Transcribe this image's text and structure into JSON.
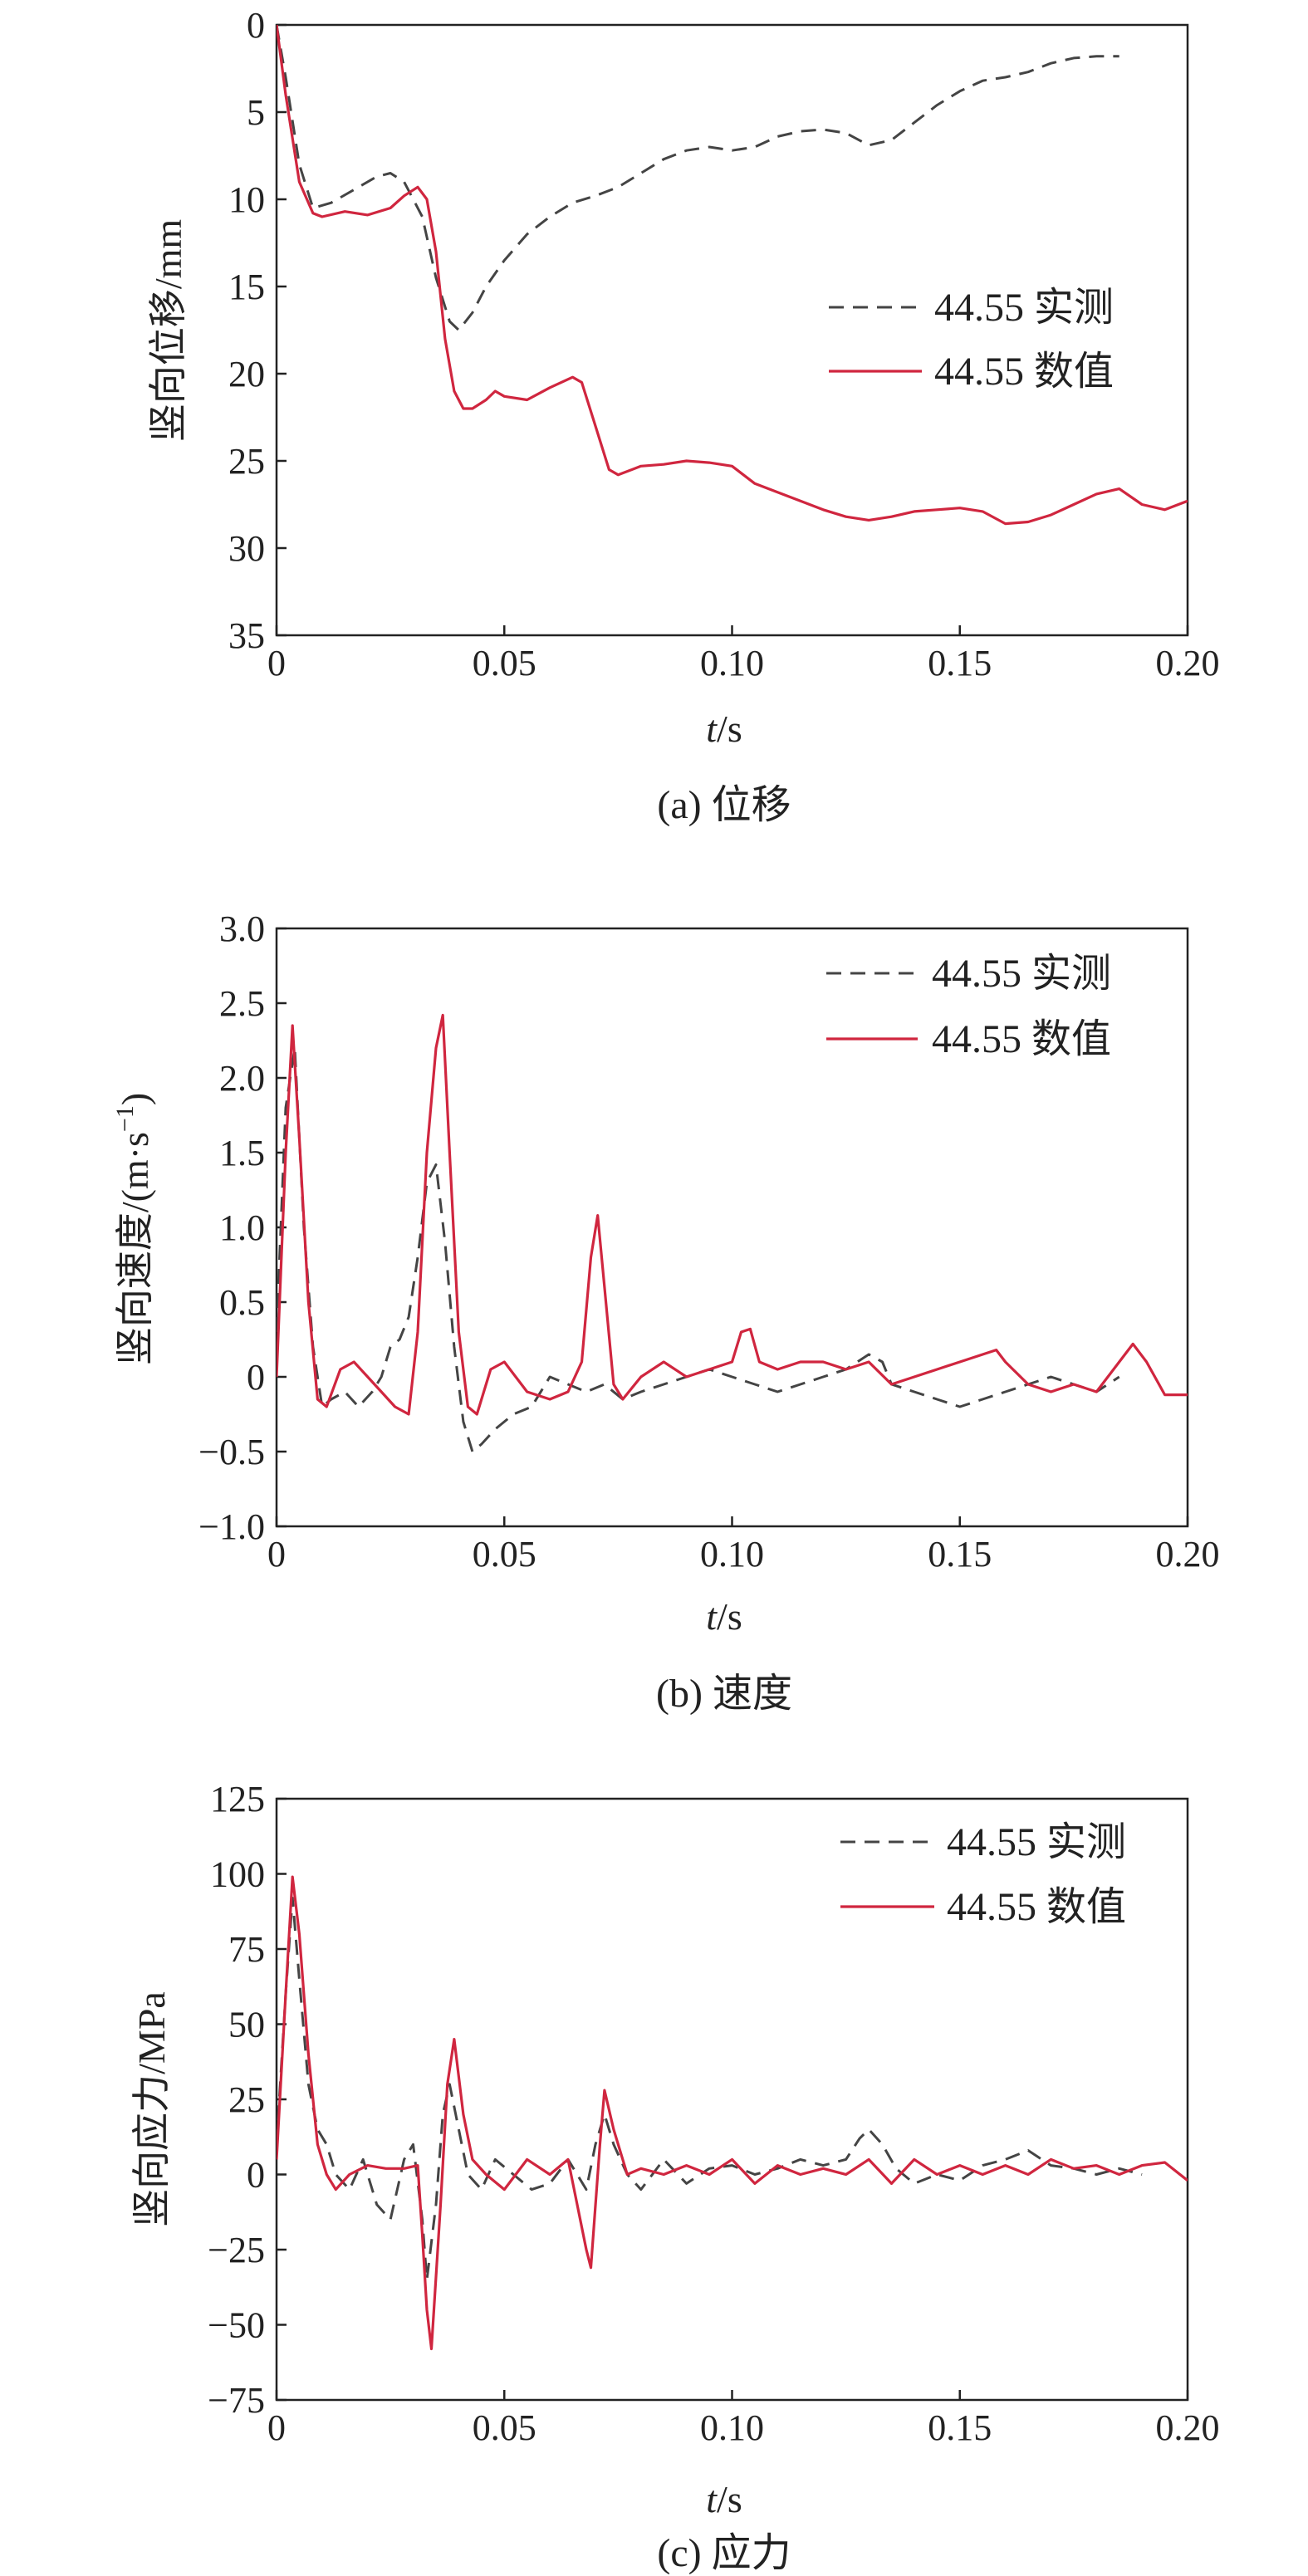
{
  "colors": {
    "measured": "#444444",
    "numerical": "#d0263f",
    "axis": "#222222"
  },
  "chart_data": [
    {
      "type": "line",
      "ylabel": "竖向位移/mm",
      "xlabel_italic": "t",
      "xlabel_unit": "/s",
      "caption": "(a) 位移",
      "y_inverted": true,
      "xlim": [
        0,
        0.2
      ],
      "ylim": [
        0,
        35
      ],
      "xticks": [
        0,
        0.05,
        0.1,
        0.15,
        0.2
      ],
      "xtick_labels": [
        "0",
        "0.05",
        "0.10",
        "0.15",
        "0.20"
      ],
      "yticks": [
        0,
        5,
        10,
        15,
        20,
        25,
        30,
        35
      ],
      "ytick_labels": [
        "0",
        "5",
        "10",
        "15",
        "20",
        "25",
        "30",
        "35"
      ],
      "legend": "right-middle",
      "series": [
        {
          "name": "44.55 实测",
          "style": "dashed",
          "x": [
            0,
            0.002,
            0.005,
            0.008,
            0.012,
            0.018,
            0.022,
            0.025,
            0.028,
            0.032,
            0.035,
            0.038,
            0.04,
            0.043,
            0.046,
            0.05,
            0.055,
            0.06,
            0.065,
            0.07,
            0.075,
            0.08,
            0.085,
            0.09,
            0.095,
            0.1,
            0.105,
            0.11,
            0.115,
            0.12,
            0.125,
            0.13,
            0.135,
            0.14,
            0.145,
            0.15,
            0.155,
            0.16,
            0.165,
            0.17,
            0.175,
            0.18,
            0.185
          ],
          "y": [
            0,
            3,
            8,
            10.5,
            10.2,
            9.3,
            8.7,
            8.5,
            9.0,
            11,
            14.5,
            17,
            17.5,
            16.5,
            15,
            13.5,
            12,
            11,
            10.2,
            9.8,
            9.3,
            8.5,
            7.7,
            7.2,
            7.0,
            7.2,
            7.0,
            6.4,
            6.1,
            6.0,
            6.2,
            6.9,
            6.6,
            5.6,
            4.6,
            3.8,
            3.2,
            3.0,
            2.7,
            2.2,
            1.9,
            1.8,
            1.8
          ]
        },
        {
          "name": "44.55 数值",
          "style": "solid",
          "x": [
            0,
            0.002,
            0.005,
            0.008,
            0.01,
            0.015,
            0.02,
            0.025,
            0.028,
            0.031,
            0.033,
            0.035,
            0.037,
            0.039,
            0.041,
            0.043,
            0.046,
            0.048,
            0.05,
            0.055,
            0.06,
            0.065,
            0.067,
            0.07,
            0.073,
            0.075,
            0.08,
            0.085,
            0.09,
            0.095,
            0.1,
            0.105,
            0.11,
            0.115,
            0.12,
            0.125,
            0.13,
            0.135,
            0.14,
            0.145,
            0.15,
            0.155,
            0.16,
            0.165,
            0.17,
            0.175,
            0.18,
            0.185,
            0.19,
            0.195,
            0.2
          ],
          "y": [
            0,
            4,
            9,
            10.8,
            11,
            10.7,
            10.9,
            10.5,
            9.8,
            9.3,
            10,
            13,
            18,
            21,
            22,
            22,
            21.5,
            21,
            21.3,
            21.5,
            20.8,
            20.2,
            20.5,
            23,
            25.5,
            25.8,
            25.3,
            25.2,
            25,
            25.1,
            25.3,
            26.3,
            26.8,
            27.3,
            27.8,
            28.2,
            28.4,
            28.2,
            27.9,
            27.8,
            27.7,
            27.9,
            28.6,
            28.5,
            28.1,
            27.5,
            26.9,
            26.6,
            27.5,
            27.8,
            27.3
          ]
        }
      ]
    },
    {
      "type": "line",
      "ylabel": "竖向速度/(m·s",
      "ylabel_sup": "−1",
      "ylabel_close": ")",
      "xlabel_italic": "t",
      "xlabel_unit": "/s",
      "caption": "(b) 速度",
      "xlim": [
        0,
        0.2
      ],
      "ylim": [
        -1.0,
        3.0
      ],
      "xticks": [
        0,
        0.05,
        0.1,
        0.15,
        0.2
      ],
      "xtick_labels": [
        "0",
        "0.05",
        "0.10",
        "0.15",
        "0.20"
      ],
      "yticks": [
        -1.0,
        -0.5,
        0,
        0.5,
        1.0,
        1.5,
        2.0,
        2.5,
        3.0
      ],
      "ytick_labels": [
        "−1.0",
        "−0.5",
        "0",
        "0.5",
        "1.0",
        "1.5",
        "2.0",
        "2.5",
        "3.0"
      ],
      "legend": "top-right",
      "series": [
        {
          "name": "44.55 实测",
          "style": "dashed",
          "x": [
            0,
            0.002,
            0.004,
            0.006,
            0.008,
            0.01,
            0.012,
            0.015,
            0.018,
            0.021,
            0.023,
            0.025,
            0.027,
            0.029,
            0.031,
            0.033,
            0.035,
            0.037,
            0.039,
            0.041,
            0.043,
            0.045,
            0.048,
            0.052,
            0.056,
            0.06,
            0.064,
            0.068,
            0.072,
            0.076,
            0.08,
            0.085,
            0.09,
            0.095,
            0.1,
            0.105,
            0.11,
            0.115,
            0.12,
            0.125,
            0.13,
            0.133,
            0.135,
            0.14,
            0.145,
            0.15,
            0.155,
            0.16,
            0.165,
            0.17,
            0.175,
            0.18,
            0.185
          ],
          "y": [
            0.3,
            1.8,
            2.2,
            1.0,
            0.2,
            -0.2,
            -0.15,
            -0.1,
            -0.2,
            -0.1,
            0,
            0.2,
            0.25,
            0.4,
            0.8,
            1.3,
            1.42,
            0.9,
            0.2,
            -0.3,
            -0.5,
            -0.45,
            -0.35,
            -0.25,
            -0.2,
            0,
            -0.05,
            -0.1,
            -0.05,
            -0.15,
            -0.1,
            -0.05,
            0,
            0.05,
            0,
            -0.05,
            -0.1,
            -0.05,
            0,
            0.05,
            0.15,
            0.1,
            -0.05,
            -0.1,
            -0.15,
            -0.2,
            -0.15,
            -0.1,
            -0.05,
            0,
            -0.05,
            -0.1,
            0
          ]
        },
        {
          "name": "44.55 数值",
          "style": "solid",
          "x": [
            0,
            0.002,
            0.0035,
            0.005,
            0.007,
            0.009,
            0.011,
            0.014,
            0.017,
            0.02,
            0.023,
            0.026,
            0.029,
            0.031,
            0.033,
            0.035,
            0.0365,
            0.038,
            0.04,
            0.042,
            0.044,
            0.047,
            0.05,
            0.055,
            0.06,
            0.064,
            0.067,
            0.069,
            0.0705,
            0.072,
            0.074,
            0.076,
            0.08,
            0.085,
            0.09,
            0.095,
            0.1,
            0.102,
            0.104,
            0.106,
            0.11,
            0.115,
            0.12,
            0.125,
            0.13,
            0.135,
            0.14,
            0.145,
            0.15,
            0.155,
            0.158,
            0.16,
            0.165,
            0.17,
            0.175,
            0.18,
            0.185,
            0.188,
            0.191,
            0.195,
            0.2
          ],
          "y": [
            0,
            1.5,
            2.35,
            1.6,
            0.5,
            -0.15,
            -0.2,
            0.05,
            0.1,
            0,
            -0.1,
            -0.2,
            -0.25,
            0.3,
            1.5,
            2.2,
            2.42,
            1.5,
            0.3,
            -0.2,
            -0.25,
            0.05,
            0.1,
            -0.1,
            -0.15,
            -0.1,
            0.1,
            0.8,
            1.08,
            0.6,
            -0.05,
            -0.15,
            0,
            0.1,
            0,
            0.05,
            0.1,
            0.3,
            0.32,
            0.1,
            0.05,
            0.1,
            0.1,
            0.05,
            0.1,
            -0.05,
            0,
            0.05,
            0.1,
            0.15,
            0.18,
            0.1,
            -0.05,
            -0.1,
            -0.05,
            -0.1,
            0.1,
            0.22,
            0.1,
            -0.12,
            -0.12
          ]
        }
      ]
    },
    {
      "type": "line",
      "ylabel": "竖向应力/MPa",
      "xlabel_italic": "t",
      "xlabel_unit": "/s",
      "caption": "(c) 应力",
      "xlim": [
        0,
        0.2
      ],
      "ylim": [
        -75,
        125
      ],
      "xticks": [
        0,
        0.05,
        0.1,
        0.15,
        0.2
      ],
      "xtick_labels": [
        "0",
        "0.05",
        "0.10",
        "0.15",
        "0.20"
      ],
      "yticks": [
        -75,
        -50,
        -25,
        0,
        25,
        50,
        75,
        100,
        125
      ],
      "ytick_labels": [
        "−75",
        "−50",
        "−25",
        "0",
        "25",
        "50",
        "75",
        "100",
        "125"
      ],
      "legend": "top-right",
      "series": [
        {
          "name": "44.55 实测",
          "style": "dashed",
          "x": [
            0,
            0.002,
            0.0035,
            0.005,
            0.007,
            0.009,
            0.011,
            0.013,
            0.016,
            0.019,
            0.022,
            0.025,
            0.028,
            0.03,
            0.032,
            0.033,
            0.035,
            0.0365,
            0.038,
            0.04,
            0.042,
            0.045,
            0.048,
            0.052,
            0.056,
            0.06,
            0.064,
            0.068,
            0.07,
            0.072,
            0.074,
            0.077,
            0.08,
            0.085,
            0.09,
            0.095,
            0.1,
            0.105,
            0.11,
            0.115,
            0.12,
            0.125,
            0.128,
            0.13,
            0.133,
            0.136,
            0.14,
            0.145,
            0.15,
            0.155,
            0.16,
            0.165,
            0.17,
            0.175,
            0.18,
            0.185,
            0.19
          ],
          "y": [
            10,
            60,
            92,
            65,
            30,
            15,
            10,
            0,
            -5,
            5,
            -10,
            -15,
            5,
            10,
            -15,
            -35,
            -10,
            20,
            30,
            15,
            0,
            -5,
            5,
            0,
            -5,
            -3,
            5,
            -5,
            10,
            20,
            10,
            0,
            -5,
            5,
            -3,
            2,
            3,
            0,
            2,
            5,
            3,
            5,
            12,
            15,
            10,
            2,
            -3,
            0,
            -2,
            3,
            5,
            8,
            3,
            2,
            0,
            2,
            0
          ]
        },
        {
          "name": "44.55 数值",
          "style": "solid",
          "x": [
            0,
            0.002,
            0.0035,
            0.005,
            0.007,
            0.009,
            0.011,
            0.013,
            0.016,
            0.02,
            0.024,
            0.028,
            0.031,
            0.032,
            0.033,
            0.034,
            0.036,
            0.0375,
            0.039,
            0.041,
            0.043,
            0.046,
            0.05,
            0.055,
            0.06,
            0.064,
            0.066,
            0.068,
            0.069,
            0.071,
            0.072,
            0.074,
            0.077,
            0.08,
            0.085,
            0.09,
            0.095,
            0.1,
            0.105,
            0.11,
            0.115,
            0.12,
            0.125,
            0.13,
            0.135,
            0.14,
            0.145,
            0.15,
            0.155,
            0.16,
            0.165,
            0.17,
            0.175,
            0.18,
            0.185,
            0.19,
            0.195,
            0.2
          ],
          "y": [
            5,
            60,
            99,
            80,
            40,
            10,
            0,
            -5,
            0,
            3,
            2,
            2,
            3,
            -20,
            -45,
            -58,
            -10,
            30,
            45,
            20,
            5,
            0,
            -5,
            5,
            0,
            5,
            -10,
            -25,
            -31,
            10,
            28,
            15,
            0,
            2,
            0,
            3,
            0,
            5,
            -3,
            3,
            0,
            2,
            0,
            5,
            -3,
            5,
            0,
            3,
            0,
            3,
            0,
            5,
            2,
            3,
            0,
            3,
            4,
            -2
          ]
        }
      ]
    }
  ]
}
